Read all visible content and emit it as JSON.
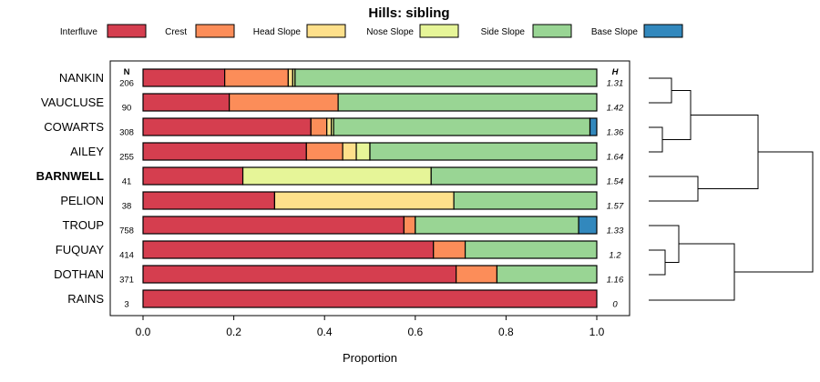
{
  "chart_data": {
    "type": "stacked-bar",
    "title": "Hills: sibling",
    "xlabel": "Proportion",
    "xlim": [
      0,
      1
    ],
    "xticks": [
      "0.0",
      "0.2",
      "0.4",
      "0.6",
      "0.8",
      "1.0"
    ],
    "n_header": "N",
    "h_header": "H",
    "legend": [
      {
        "name": "Interfluve",
        "color": "#d53e4f"
      },
      {
        "name": "Crest",
        "color": "#fc8d59"
      },
      {
        "name": "Head Slope",
        "color": "#fee08b"
      },
      {
        "name": "Nose Slope",
        "color": "#e6f598"
      },
      {
        "name": "Side Slope",
        "color": "#99d594"
      },
      {
        "name": "Base Slope",
        "color": "#3288bd"
      }
    ],
    "rows": [
      {
        "name": "NANKIN",
        "bold": false,
        "n": "206",
        "h": "1.31",
        "values": [
          0.18,
          0.14,
          0.01,
          0.005,
          0.665,
          0.0
        ]
      },
      {
        "name": "VAUCLUSE",
        "bold": false,
        "n": "90",
        "h": "1.42",
        "values": [
          0.19,
          0.24,
          0.0,
          0.0,
          0.57,
          0.0
        ]
      },
      {
        "name": "COWARTS",
        "bold": false,
        "n": "308",
        "h": "1.36",
        "values": [
          0.37,
          0.035,
          0.01,
          0.005,
          0.565,
          0.015
        ]
      },
      {
        "name": "AILEY",
        "bold": false,
        "n": "255",
        "h": "1.64",
        "values": [
          0.36,
          0.08,
          0.03,
          0.03,
          0.5,
          0.0
        ]
      },
      {
        "name": "BARNWELL",
        "bold": true,
        "n": "41",
        "h": "1.54",
        "values": [
          0.22,
          0.0,
          0.0,
          0.415,
          0.365,
          0.0
        ]
      },
      {
        "name": "PELION",
        "bold": false,
        "n": "38",
        "h": "1.57",
        "values": [
          0.29,
          0.0,
          0.395,
          0.0,
          0.315,
          0.0
        ]
      },
      {
        "name": "TROUP",
        "bold": false,
        "n": "758",
        "h": "1.33",
        "values": [
          0.575,
          0.025,
          0.0,
          0.0,
          0.36,
          0.04
        ]
      },
      {
        "name": "FUQUAY",
        "bold": false,
        "n": "414",
        "h": "1.2",
        "values": [
          0.64,
          0.07,
          0.0,
          0.0,
          0.29,
          0.0
        ]
      },
      {
        "name": "DOTHAN",
        "bold": false,
        "n": "371",
        "h": "1.16",
        "values": [
          0.69,
          0.09,
          0.0,
          0.0,
          0.22,
          0.0
        ]
      },
      {
        "name": "RAINS",
        "bold": false,
        "n": "3",
        "h": "0",
        "values": [
          1.0,
          0.0,
          0.0,
          0.0,
          0.0,
          0.0
        ]
      }
    ]
  }
}
